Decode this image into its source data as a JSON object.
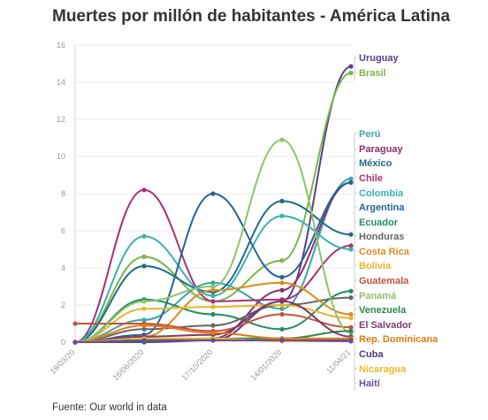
{
  "title": "Muertes por millón de habitantes - América Latina",
  "source": "Fuente: Our world in data",
  "chart_data": {
    "type": "line",
    "title": "Muertes por millón de habitantes - América Latina",
    "xlabel": "",
    "ylabel": "",
    "x": [
      "19/03/20",
      "16/06/2020",
      "17/10/2020",
      "14/01/2020",
      "11/04/21"
    ],
    "ylim": [
      0,
      16
    ],
    "yticks": [
      0,
      2,
      4,
      6,
      8,
      10,
      12,
      14,
      16
    ],
    "grid": true,
    "legend": "right-labels",
    "series": [
      {
        "name": "Uruguay",
        "color": "#5b3f8c",
        "values": [
          0,
          0,
          0.1,
          2.2,
          14.85
        ]
      },
      {
        "name": "Brasil",
        "color": "#7ab648",
        "values": [
          0,
          4.6,
          2.2,
          4.4,
          14.5
        ]
      },
      {
        "name": "Perú",
        "color": "#3aa6a8",
        "values": [
          0,
          1.2,
          3.2,
          1.8,
          8.8
        ]
      },
      {
        "name": "Paraguay",
        "color": "#8e2c6e",
        "values": [
          0,
          0.1,
          0.2,
          2.8,
          8.6
        ]
      },
      {
        "name": "México",
        "color": "#1f6c8a",
        "values": [
          0,
          4.1,
          2.7,
          7.6,
          5.8
        ]
      },
      {
        "name": "Chile",
        "color": "#a83271",
        "values": [
          0,
          8.2,
          2.2,
          2.3,
          5.2
        ]
      },
      {
        "name": "Colombia",
        "color": "#3ab0b0",
        "values": [
          0,
          5.7,
          2.5,
          6.8,
          5.0
        ]
      },
      {
        "name": "Argentina",
        "color": "#24639a",
        "values": [
          0,
          0.4,
          8.0,
          3.5,
          8.6
        ]
      },
      {
        "name": "Ecuador",
        "color": "#1f8f5e",
        "values": [
          0,
          2.3,
          1.5,
          0.7,
          2.75
        ]
      },
      {
        "name": "Honduras",
        "color": "#666666",
        "values": [
          0,
          0.7,
          0.9,
          2.0,
          2.4
        ]
      },
      {
        "name": "Costa Rica",
        "color": "#e08a1e",
        "values": [
          0,
          0.3,
          2.8,
          3.2,
          1.5
        ]
      },
      {
        "name": "Bolivia",
        "color": "#e8b52a",
        "values": [
          0,
          1.8,
          1.9,
          2.0,
          1.3
        ]
      },
      {
        "name": "Guatemala",
        "color": "#c8503c",
        "values": [
          1.0,
          1.0,
          0.6,
          1.5,
          0.8
        ]
      },
      {
        "name": "Panamá",
        "color": "#8fc26a",
        "values": [
          0,
          2.2,
          3.0,
          10.9,
          0.5
        ]
      },
      {
        "name": "Venezuela",
        "color": "#2b8a4a",
        "values": [
          0,
          0.05,
          0.2,
          0.2,
          0.6
        ]
      },
      {
        "name": "El Salvador",
        "color": "#7a3b6e",
        "values": [
          0,
          0.3,
          0.4,
          2.2,
          0.3
        ]
      },
      {
        "name": "Rep. Dominicana",
        "color": "#e07a10",
        "values": [
          0,
          0.9,
          0.5,
          0.2,
          0.2
        ]
      },
      {
        "name": "Cuba",
        "color": "#4b3b7a",
        "values": [
          0,
          0.1,
          0.1,
          0.1,
          0.1
        ]
      },
      {
        "name": "Nicaragua",
        "color": "#f0b82a",
        "values": [
          0,
          0.2,
          0.2,
          0.05,
          0.05
        ]
      },
      {
        "name": "Haití",
        "color": "#6b4c9a",
        "values": [
          0,
          0.1,
          0.1,
          0.1,
          0.05
        ]
      }
    ]
  }
}
